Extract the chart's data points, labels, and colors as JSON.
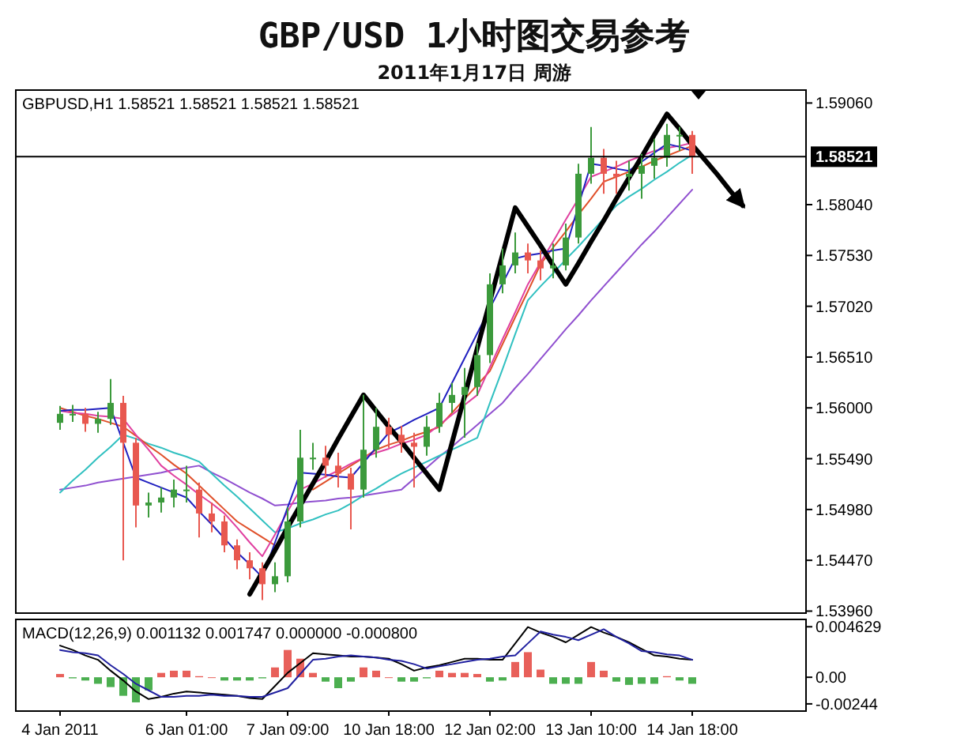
{
  "chart_data": [
    {
      "type": "candlestick",
      "title": "GBP/USD 1小时图交易参考",
      "subtitle": "2011年1月17日 周游",
      "annotations": [
        "GBPUSD,H1 1.58521 1.58521 1.58521 1.58521"
      ],
      "categories": [
        null,
        null,
        null,
        null,
        null,
        null,
        null,
        null,
        null,
        null,
        null,
        null,
        null,
        null,
        null,
        null,
        null,
        null,
        null,
        null,
        null,
        null,
        null,
        null,
        null,
        null,
        null,
        null,
        null,
        null,
        null,
        null,
        null,
        null,
        null,
        null,
        null,
        null,
        null,
        null,
        null,
        null,
        null,
        null,
        null,
        null,
        null,
        null,
        null,
        null,
        null,
        null,
        null,
        null,
        null
      ],
      "ylim": [
        1.5394,
        1.5919
      ],
      "yticks": [
        {
          "value": 1.5906,
          "label": "1.59060"
        },
        {
          "value": 1.5804,
          "label": "1.58040"
        },
        {
          "value": 1.5753,
          "label": "1.57530"
        },
        {
          "value": 1.5702,
          "label": "1.57020"
        },
        {
          "value": 1.5651,
          "label": "1.56510"
        },
        {
          "value": 1.56,
          "label": "1.56000"
        },
        {
          "value": 1.5549,
          "label": "1.55490"
        },
        {
          "value": 1.5498,
          "label": "1.54980"
        },
        {
          "value": 1.5447,
          "label": "1.54470"
        },
        {
          "value": 1.5396,
          "label": "1.53960"
        }
      ],
      "tick_labels": "y",
      "ref_lines": [
        {
          "axis": "y",
          "value": 1.58521,
          "label": "1.58521",
          "color": "#000000"
        }
      ],
      "series": [
        {
          "type": "candlestick",
          "ohlc": [
            [
              1.5585,
              1.5602,
              1.5578,
              1.5594
            ],
            [
              1.5594,
              1.5603,
              1.5586,
              1.5594
            ],
            [
              1.5594,
              1.56,
              1.5576,
              1.5584
            ],
            [
              1.5584,
              1.5596,
              1.5575,
              1.5589
            ],
            [
              1.5589,
              1.5629,
              1.5583,
              1.5605
            ],
            [
              1.5605,
              1.5612,
              1.5447,
              1.5565
            ],
            [
              1.5565,
              1.557,
              1.548,
              1.5502
            ],
            [
              1.5502,
              1.5515,
              1.549,
              1.5505
            ],
            [
              1.5505,
              1.552,
              1.5495,
              1.551
            ],
            [
              1.551,
              1.5528,
              1.55,
              1.5518
            ],
            [
              1.5518,
              1.5542,
              1.5505,
              1.5518
            ],
            [
              1.5518,
              1.5525,
              1.547,
              1.5494
            ],
            [
              1.5494,
              1.5505,
              1.5475,
              1.5486
            ],
            [
              1.5486,
              1.5492,
              1.5455,
              1.5462
            ],
            [
              1.5462,
              1.5468,
              1.5438,
              1.5447
            ],
            [
              1.5447,
              1.5455,
              1.5428,
              1.5439
            ],
            [
              1.5439,
              1.5445,
              1.5407,
              1.5423
            ],
            [
              1.5423,
              1.5445,
              1.5415,
              1.5431
            ],
            [
              1.5431,
              1.55,
              1.5425,
              1.5486
            ],
            [
              1.5486,
              1.5578,
              1.548,
              1.555
            ],
            [
              1.555,
              1.5565,
              1.5538,
              1.555
            ],
            [
              1.555,
              1.5562,
              1.553,
              1.5542
            ],
            [
              1.5542,
              1.5555,
              1.552,
              1.5534
            ],
            [
              1.5534,
              1.554,
              1.5478,
              1.5518
            ],
            [
              1.5518,
              1.5613,
              1.551,
              1.5558
            ],
            [
              1.5558,
              1.56,
              1.555,
              1.5581
            ],
            [
              1.5581,
              1.559,
              1.556,
              1.5573
            ],
            [
              1.5573,
              1.5582,
              1.5555,
              1.5565
            ],
            [
              1.5565,
              1.5575,
              1.552,
              1.5561
            ],
            [
              1.5561,
              1.5592,
              1.5552,
              1.5581
            ],
            [
              1.5581,
              1.5615,
              1.5575,
              1.5605
            ],
            [
              1.5605,
              1.5625,
              1.5595,
              1.5613
            ],
            [
              1.5613,
              1.564,
              1.557,
              1.5621
            ],
            [
              1.5621,
              1.5665,
              1.5612,
              1.5653
            ],
            [
              1.5653,
              1.5735,
              1.5645,
              1.5724
            ],
            [
              1.5724,
              1.576,
              1.5715,
              1.5743
            ],
            [
              1.5743,
              1.5776,
              1.5735,
              1.5756
            ],
            [
              1.5756,
              1.5765,
              1.5735,
              1.5748
            ],
            [
              1.5748,
              1.5758,
              1.5728,
              1.574
            ],
            [
              1.574,
              1.5765,
              1.573,
              1.5743
            ],
            [
              1.5743,
              1.5785,
              1.5738,
              1.5771
            ],
            [
              1.5771,
              1.5845,
              1.5765,
              1.5835
            ],
            [
              1.5835,
              1.5882,
              1.5825,
              1.5851
            ],
            [
              1.5851,
              1.586,
              1.5815,
              1.5835
            ],
            [
              1.5835,
              1.5848,
              1.5815,
              1.5832
            ],
            [
              1.5832,
              1.5848,
              1.5818,
              1.5835
            ],
            [
              1.5835,
              1.5855,
              1.581,
              1.5843
            ],
            [
              1.5843,
              1.587,
              1.583,
              1.5851
            ],
            [
              1.5851,
              1.5885,
              1.5842,
              1.5874
            ],
            [
              1.5874,
              1.5882,
              1.5858,
              1.5874
            ],
            [
              1.5874,
              1.5878,
              1.5835,
              1.5852
            ],
            null,
            null,
            null,
            null
          ],
          "colors": [
            "#3c9a3c",
            "#3c9a3c",
            "#e8584f",
            "#3c9a3c",
            "#3c9a3c",
            "#e8584f",
            "#e8584f",
            "#3c9a3c",
            "#3c9a3c",
            "#3c9a3c",
            "#3c9a3c",
            "#e8584f",
            "#e8584f",
            "#e8584f",
            "#e8584f",
            "#e8584f",
            "#e8584f",
            "#3c9a3c",
            "#3c9a3c",
            "#3c9a3c",
            "#3c9a3c",
            "#e8584f",
            "#e8584f",
            "#e8584f",
            "#3c9a3c",
            "#3c9a3c",
            "#e8584f",
            "#e8584f",
            "#e8584f",
            "#3c9a3c",
            "#3c9a3c",
            "#3c9a3c",
            "#3c9a3c",
            "#3c9a3c",
            "#3c9a3c",
            "#3c9a3c",
            "#3c9a3c",
            "#e8584f",
            "#e8584f",
            "#3c9a3c",
            "#3c9a3c",
            "#3c9a3c",
            "#3c9a3c",
            "#e8584f",
            "#e8584f",
            "#3c9a3c",
            "#3c9a3c",
            "#3c9a3c",
            "#3c9a3c",
            "#3c9a3c",
            "#e8584f",
            null,
            null,
            null,
            null
          ]
        },
        {
          "type": "line",
          "color": "#9050d0",
          "values": [
            1.5518,
            1.552,
            1.5522,
            1.5525,
            1.5527,
            1.5529,
            1.5531,
            1.5533,
            1.5535,
            1.5538,
            1.554,
            1.5542,
            1.5535,
            1.5529,
            1.5522,
            1.5515,
            1.5509,
            1.5502,
            1.5503,
            1.5505,
            1.5506,
            1.5507,
            1.5509,
            1.551,
            1.5512,
            1.5514,
            1.5516,
            1.5518,
            1.5529,
            1.554,
            1.5551,
            1.5561,
            1.5572,
            1.5583,
            1.5594,
            1.5605,
            1.562,
            1.5634,
            1.5649,
            1.5664,
            1.5679,
            1.5693,
            1.5708,
            1.5722,
            1.5736,
            1.575,
            1.5764,
            1.5777,
            1.5791,
            1.5805,
            1.5819,
            null,
            null,
            null,
            null
          ]
        },
        {
          "type": "line",
          "color": "#30c0c0",
          "values": [
            1.5515,
            1.5527,
            1.5538,
            1.555,
            1.5561,
            1.5573,
            1.5569,
            1.5564,
            1.556,
            1.5555,
            1.5551,
            1.5546,
            1.5534,
            1.5522,
            1.5511,
            1.5499,
            1.5487,
            1.5475,
            1.5479,
            1.5484,
            1.5488,
            1.5493,
            1.5497,
            1.5504,
            1.5512,
            1.5519,
            1.5527,
            1.5534,
            1.554,
            1.5546,
            1.5552,
            1.5558,
            1.5564,
            1.557,
            1.5605,
            1.5639,
            1.5674,
            1.5708,
            1.5722,
            1.5735,
            1.5749,
            1.5762,
            1.5776,
            1.579,
            1.5803,
            1.5812,
            1.582,
            1.5829,
            1.5837,
            1.5846,
            1.5854,
            null,
            null,
            null,
            null
          ]
        },
        {
          "type": "line",
          "color": "#e0502a",
          "values": [
            1.56,
            1.5596,
            1.5592,
            1.5589,
            1.5585,
            1.5581,
            1.5572,
            1.5562,
            1.5553,
            1.5543,
            1.5534,
            1.5522,
            1.551,
            1.5498,
            1.5486,
            1.5478,
            1.547,
            1.5462,
            null,
            null,
            1.5518,
            1.5526,
            1.5534,
            1.5542,
            1.555,
            1.5558,
            1.5563,
            1.5567,
            1.5572,
            1.5576,
            1.5581,
            1.5595,
            1.5609,
            1.5623,
            1.5637,
            1.5664,
            1.5691,
            1.5717,
            1.5744,
            1.5761,
            1.5777,
            1.5794,
            1.581,
            1.5827,
            1.5832,
            1.5837,
            1.5842,
            1.5848,
            1.5853,
            1.5858,
            1.5863,
            null,
            null,
            null,
            null
          ]
        },
        {
          "type": "line",
          "color": "#e040a0",
          "values": [
            1.5597,
            1.5595,
            1.5594,
            1.5592,
            1.5591,
            1.5589,
            1.5573,
            1.5558,
            1.5542,
            1.5532,
            1.5523,
            1.5513,
            1.5504,
            1.5494,
            1.548,
            1.5465,
            1.5451,
            1.5473,
            1.5496,
            1.5518,
            1.5524,
            1.5531,
            1.5537,
            1.5544,
            1.555,
            1.5555,
            1.5559,
            1.5564,
            1.5568,
            1.5573,
            1.5583,
            1.5593,
            1.5603,
            1.5613,
            1.5641,
            1.5669,
            1.5696,
            1.5724,
            1.5746,
            1.5767,
            1.5789,
            1.581,
            1.5832,
            1.5837,
            1.5842,
            1.5848,
            1.5853,
            1.5858,
            1.5861,
            1.5863,
            1.5866,
            null,
            null,
            null,
            null
          ]
        },
        {
          "type": "line",
          "color": "#2020c0",
          "values": [
            1.5597,
            1.5598,
            1.5598,
            1.5599,
            1.56,
            1.5565,
            1.553,
            1.5525,
            1.552,
            1.5515,
            1.551,
            1.5496,
            1.5483,
            1.5469,
            1.5455,
            1.5443,
            1.543,
            1.5465,
            1.55,
            1.5535,
            1.5534,
            1.5533,
            1.5531,
            1.553,
            1.5545,
            1.556,
            1.5575,
            1.5581,
            1.5588,
            1.5594,
            1.56,
            1.5625,
            1.565,
            1.5675,
            1.57,
            1.5725,
            1.575,
            1.5753,
            1.5755,
            1.5758,
            1.576,
            1.5803,
            1.5845,
            1.5843,
            1.584,
            1.5838,
            1.5847,
            1.5856,
            1.5865,
            1.5862,
            1.5858,
            null,
            null,
            null,
            null
          ]
        },
        {
          "type": "line",
          "color": "#000000",
          "values": [
            null,
            null,
            null,
            null,
            null,
            null,
            null,
            null,
            null,
            null,
            null,
            null,
            null,
            null,
            null,
            1.5413,
            1.5435,
            1.5457,
            1.548,
            1.5502,
            1.5524,
            1.5546,
            1.5569,
            1.5591,
            1.5613,
            1.5597,
            1.5581,
            1.5566,
            1.555,
            1.5534,
            1.5518,
            1.5565,
            1.5612,
            1.566,
            1.5707,
            1.5754,
            1.5801,
            1.5782,
            1.5763,
            1.5743,
            1.5724,
            1.5745,
            1.5767,
            1.5788,
            1.581,
            1.5831,
            1.5852,
            1.5874,
            1.5895,
            1.588,
            1.5864,
            1.5849,
            1.5834,
            1.5818,
            1.5803
          ]
        }
      ]
    },
    {
      "type": "bar",
      "annotations": [
        "MACD(12,26,9) 0.001132 0.001747 0.000000 -0.000800"
      ],
      "categories": [
        "4 Jan 2011",
        null,
        null,
        null,
        null,
        null,
        null,
        null,
        null,
        null,
        "6 Jan 01:00",
        null,
        null,
        null,
        null,
        null,
        null,
        null,
        "7 Jan 09:00",
        null,
        null,
        null,
        null,
        null,
        null,
        null,
        "10 Jan 18:00",
        null,
        null,
        null,
        null,
        null,
        null,
        null,
        "12 Jan 02:00",
        null,
        null,
        null,
        null,
        null,
        null,
        null,
        "13 Jan 10:00",
        null,
        null,
        null,
        null,
        null,
        null,
        null,
        "14 Jan 18:00",
        null,
        null,
        null,
        null
      ],
      "ylim": [
        -0.0031,
        0.0053
      ],
      "yticks": [
        {
          "value": 0.004629,
          "label": "0.004629"
        },
        {
          "value": 0,
          "label": "0.00"
        },
        {
          "value": -0.00244,
          "label": "-0.00244"
        }
      ],
      "series": [
        {
          "type": "bar",
          "values": [
            0.0003,
            -0.0001,
            -0.0003,
            -0.0006,
            -0.0009,
            -0.0017,
            -0.0023,
            -0.0012,
            0.0004,
            0.0006,
            0.0006,
            0.0001,
            0,
            -0.0003,
            -0.0003,
            -0.0003,
            -0.0001,
            0.0009,
            0.0025,
            0.0017,
            0.0004,
            -0.0004,
            -0.001,
            -0.0004,
            0.0009,
            0.0006,
            0,
            -0.0004,
            -0.0004,
            -0.0001,
            0.0006,
            0.0004,
            0.0004,
            0.0003,
            -0.0004,
            -0.0003,
            0.0014,
            0.0023,
            0.0007,
            -0.0006,
            -0.0006,
            -0.0006,
            0.0014,
            0.0006,
            -0.0004,
            -0.0007,
            -0.0006,
            -0.0006,
            0.0001,
            -0.0003,
            -0.0006,
            null,
            null,
            null,
            null
          ],
          "colors": [
            "#e8605a",
            "#4caf50",
            "#4caf50",
            "#4caf50",
            "#4caf50",
            "#4caf50",
            "#4caf50",
            "#4caf50",
            "#e8605a",
            "#e8605a",
            "#e8605a",
            "#e8605a",
            "#e8605a",
            "#4caf50",
            "#4caf50",
            "#4caf50",
            "#4caf50",
            "#e8605a",
            "#e8605a",
            "#e8605a",
            "#e8605a",
            "#4caf50",
            "#4caf50",
            "#4caf50",
            "#e8605a",
            "#e8605a",
            "#e8605a",
            "#4caf50",
            "#4caf50",
            "#4caf50",
            "#e8605a",
            "#e8605a",
            "#e8605a",
            "#e8605a",
            "#4caf50",
            "#4caf50",
            "#e8605a",
            "#e8605a",
            "#e8605a",
            "#4caf50",
            "#4caf50",
            "#4caf50",
            "#e8605a",
            "#e8605a",
            "#4caf50",
            "#4caf50",
            "#4caf50",
            "#4caf50",
            "#e8605a",
            "#4caf50",
            "#4caf50",
            null,
            null,
            null,
            null
          ]
        },
        {
          "type": "line",
          "color": "#000000",
          "values": [
            0.0029,
            0.0025,
            0.002,
            0.0016,
            0.0006,
            -0.0003,
            -0.0013,
            -0.002,
            -0.0018,
            -0.0015,
            -0.0013,
            -0.0014,
            -0.0015,
            -0.0016,
            -0.0017,
            -0.0019,
            -0.002,
            -0.0008,
            0.0004,
            0.0013,
            0.0022,
            0.0021,
            0.002,
            0.0019,
            0.0019,
            0.0018,
            0.0017,
            0.0012,
            0.0006,
            0.0009,
            0.0011,
            0.0014,
            0.0017,
            0.0017,
            0.0016,
            0.0016,
            0.0031,
            0.0046,
            0.0041,
            0.0037,
            0.0032,
            0.0039,
            0.0046,
            0.0041,
            0.0037,
            0.0032,
            0.0026,
            0.002,
            0.0019,
            0.0017,
            0.0016,
            null,
            null,
            null,
            null
          ]
        },
        {
          "type": "line",
          "color": "#2020a0",
          "values": [
            0.0025,
            0.0023,
            0.0022,
            0.002,
            0.0011,
            0.0003,
            -0.0006,
            -0.0012,
            -0.0018,
            -0.0018,
            -0.0017,
            -0.0017,
            -0.0016,
            -0.0017,
            -0.0017,
            -0.0018,
            -0.0018,
            -0.0014,
            -0.001,
            0.0003,
            0.0016,
            0.0017,
            0.0019,
            0.002,
            0.0019,
            0.0018,
            0.0016,
            0.0015,
            0.0012,
            0.0008,
            0.001,
            0.0012,
            0.0014,
            0.0016,
            0.0017,
            0.0019,
            0.002,
            0.0031,
            0.0042,
            0.0039,
            0.0037,
            0.0034,
            0.0039,
            0.0044,
            0.0037,
            0.0031,
            0.0024,
            0.0023,
            0.0021,
            0.002,
            0.0016,
            null,
            null,
            null,
            null
          ]
        }
      ]
    }
  ]
}
